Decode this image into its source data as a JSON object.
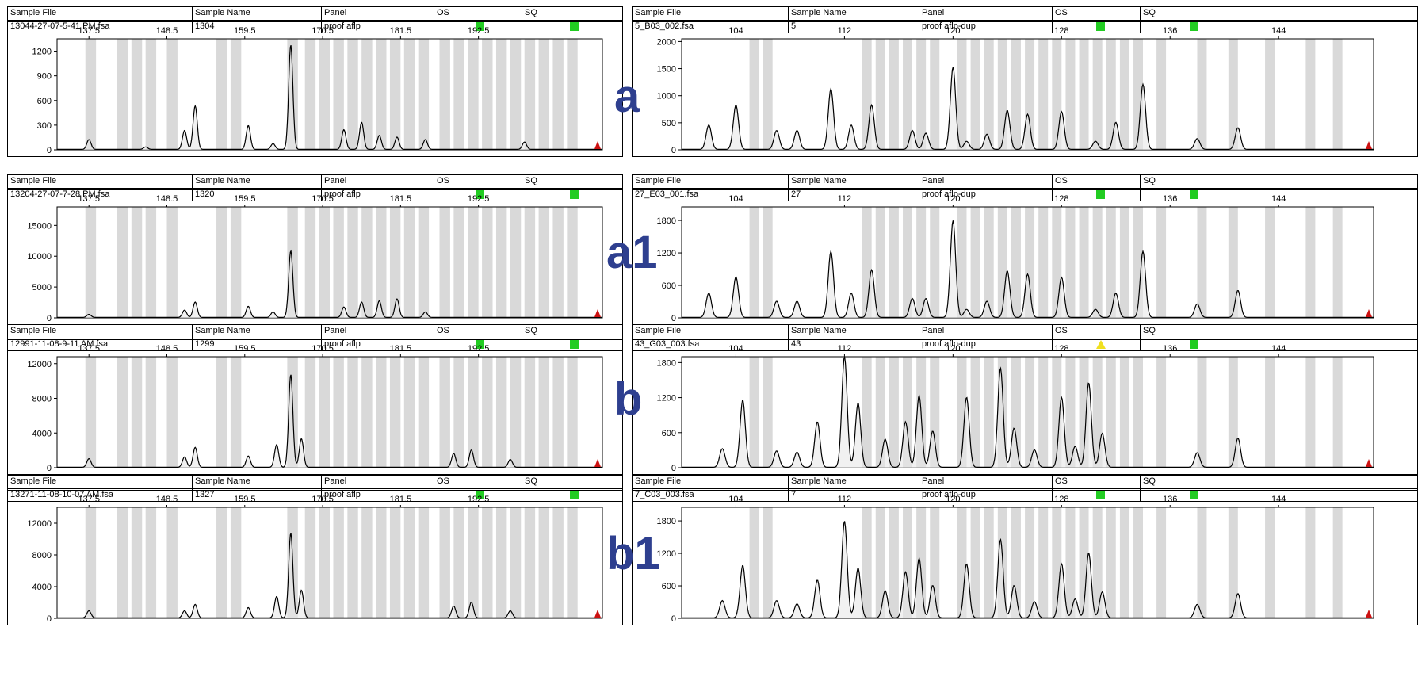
{
  "colors": {
    "bin": "#d9d9d9",
    "trace": "#000000",
    "ok": "#22cc22",
    "warn": "#f0e020",
    "marker": "#cc1111",
    "letter": "#2e3f8f"
  },
  "headers": {
    "sample_file": "Sample File",
    "sample_name": "Sample Name",
    "panel": "Panel",
    "os": "OS",
    "sq": "SQ"
  },
  "letters": [
    "a",
    "a1",
    "b",
    "b1"
  ],
  "left_axis": {
    "xticks": [
      "137.5",
      "148.5",
      "159.5",
      "170.5",
      "181.5",
      "192.5"
    ],
    "xrange": [
      133,
      210
    ]
  },
  "right_axis": {
    "xticks": [
      "104",
      "112",
      "120",
      "128",
      "136",
      "144"
    ],
    "xrange": [
      100,
      151
    ]
  },
  "left": [
    {
      "file": "13044-27-07-5-41 PM.fsa",
      "name": "1304",
      "panel": "proof aflp",
      "os": "ok",
      "sq": "ok",
      "yticks": [
        "0",
        "300",
        "600",
        "900",
        "1200"
      ],
      "ymax": 1350
    },
    {
      "file": "13204-27-07-7-28 PM.fsa",
      "name": "1320",
      "panel": "proof aflp",
      "os": "ok",
      "sq": "ok",
      "yticks": [
        "0",
        "5000",
        "10000",
        "15000"
      ],
      "ymax": 18000
    },
    {
      "file": "12991-11-08-9-11 AM.fsa",
      "name": "1299",
      "panel": "proof aflp",
      "os": "ok",
      "sq": "ok",
      "yticks": [
        "0",
        "4000",
        "8000",
        "12000"
      ],
      "ymax": 12800
    },
    {
      "file": "13271-11-08-10-07 AM.fsa",
      "name": "1327",
      "panel": "proof aflp",
      "os": "ok",
      "sq": "ok",
      "yticks": [
        "0",
        "4000",
        "8000",
        "12000"
      ],
      "ymax": 14000
    }
  ],
  "right": [
    {
      "file": "5_B03_002.fsa",
      "name": "5",
      "panel": "proof aflp-dup",
      "os": "ok",
      "sq": "ok",
      "yticks": [
        "0",
        "500",
        "1000",
        "1500",
        "2000"
      ],
      "ymax": 2050
    },
    {
      "file": "27_E03_001.fsa",
      "name": "27",
      "panel": "proof aflp-dup",
      "os": "ok",
      "sq": "ok",
      "yticks": [
        "0",
        "600",
        "1200",
        "1800"
      ],
      "ymax": 2050
    },
    {
      "file": "43_G03_003.fsa",
      "name": "43",
      "panel": "proof aflp-dup",
      "os": "warn",
      "sq": "ok",
      "yticks": [
        "0",
        "600",
        "1200",
        "1800"
      ],
      "ymax": 1900
    },
    {
      "file": "7_C03_003.fsa",
      "name": "7",
      "panel": "proof aflp-dup",
      "os": "ok",
      "sq": "ok",
      "yticks": [
        "0",
        "600",
        "1200",
        "1800"
      ],
      "ymax": 2050
    }
  ],
  "chart_data": [
    {
      "type": "line",
      "title": "13044-27-07-5-41 PM.fsa",
      "x_ticks": [
        137.5,
        148.5,
        159.5,
        170.5,
        181.5,
        192.5
      ],
      "ylim": [
        0,
        1350
      ],
      "peaks": [
        [
          137.5,
          120
        ],
        [
          145.5,
          30
        ],
        [
          151,
          230
        ],
        [
          152.5,
          530
        ],
        [
          160,
          290
        ],
        [
          163.5,
          70
        ],
        [
          166,
          1270
        ],
        [
          173.5,
          240
        ],
        [
          176,
          330
        ],
        [
          178.5,
          170
        ],
        [
          181,
          150
        ],
        [
          185,
          120
        ],
        [
          199,
          90
        ]
      ]
    },
    {
      "type": "line",
      "title": "13204-27-07-7-28 PM.fsa",
      "x_ticks": [
        137.5,
        148.5,
        159.5,
        170.5,
        181.5,
        192.5
      ],
      "ylim": [
        0,
        18000
      ],
      "peaks": [
        [
          137.5,
          500
        ],
        [
          151,
          1200
        ],
        [
          152.5,
          2500
        ],
        [
          160,
          1800
        ],
        [
          163.5,
          900
        ],
        [
          166,
          10800
        ],
        [
          173.5,
          1700
        ],
        [
          176,
          2500
        ],
        [
          178.5,
          2700
        ],
        [
          181,
          3000
        ],
        [
          185,
          900
        ]
      ]
    },
    {
      "type": "line",
      "title": "12991-11-08-9-11 AM.fsa",
      "x_ticks": [
        137.5,
        148.5,
        159.5,
        170.5,
        181.5,
        192.5
      ],
      "ylim": [
        0,
        12800
      ],
      "peaks": [
        [
          137.5,
          1000
        ],
        [
          151,
          1200
        ],
        [
          152.5,
          2300
        ],
        [
          160,
          1300
        ],
        [
          164,
          2600
        ],
        [
          166,
          10700
        ],
        [
          167.5,
          3300
        ],
        [
          189,
          1600
        ],
        [
          191.5,
          2000
        ],
        [
          197,
          900
        ]
      ]
    },
    {
      "type": "line",
      "title": "13271-11-08-10-07 AM.fsa",
      "x_ticks": [
        137.5,
        148.5,
        159.5,
        170.5,
        181.5,
        192.5
      ],
      "ylim": [
        0,
        14000
      ],
      "peaks": [
        [
          137.5,
          900
        ],
        [
          151,
          900
        ],
        [
          152.5,
          1700
        ],
        [
          160,
          1300
        ],
        [
          164,
          2700
        ],
        [
          166,
          10700
        ],
        [
          167.5,
          3500
        ],
        [
          189,
          1500
        ],
        [
          191.5,
          2000
        ],
        [
          197,
          900
        ]
      ]
    },
    {
      "type": "line",
      "title": "5_B03_002.fsa",
      "x_ticks": [
        104,
        112,
        120,
        128,
        136,
        144
      ],
      "ylim": [
        0,
        2050
      ],
      "peaks": [
        [
          102,
          450
        ],
        [
          104,
          820
        ],
        [
          107,
          350
        ],
        [
          108.5,
          350
        ],
        [
          111,
          1120
        ],
        [
          112.5,
          450
        ],
        [
          114,
          820
        ],
        [
          117,
          350
        ],
        [
          118,
          300
        ],
        [
          120,
          1520
        ],
        [
          121,
          150
        ],
        [
          122.5,
          280
        ],
        [
          124,
          720
        ],
        [
          125.5,
          650
        ],
        [
          128,
          700
        ],
        [
          130.5,
          150
        ],
        [
          132,
          500
        ],
        [
          134,
          1200
        ],
        [
          138,
          200
        ],
        [
          141,
          400
        ]
      ]
    },
    {
      "type": "line",
      "title": "27_E03_001.fsa",
      "x_ticks": [
        104,
        112,
        120,
        128,
        136,
        144
      ],
      "ylim": [
        0,
        2050
      ],
      "peaks": [
        [
          102,
          450
        ],
        [
          104,
          750
        ],
        [
          107,
          300
        ],
        [
          108.5,
          300
        ],
        [
          111,
          1220
        ],
        [
          112.5,
          450
        ],
        [
          114,
          880
        ],
        [
          117,
          350
        ],
        [
          118,
          350
        ],
        [
          120,
          1790
        ],
        [
          121,
          150
        ],
        [
          122.5,
          300
        ],
        [
          124,
          860
        ],
        [
          125.5,
          800
        ],
        [
          128,
          740
        ],
        [
          130.5,
          150
        ],
        [
          132,
          450
        ],
        [
          134,
          1220
        ],
        [
          138,
          250
        ],
        [
          141,
          500
        ]
      ]
    },
    {
      "type": "line",
      "title": "43_G03_003.fsa",
      "x_ticks": [
        104,
        112,
        120,
        128,
        136,
        144
      ],
      "ylim": [
        0,
        1900
      ],
      "peaks": [
        [
          103,
          320
        ],
        [
          104.5,
          1150
        ],
        [
          107,
          280
        ],
        [
          108.5,
          260
        ],
        [
          110,
          780
        ],
        [
          112,
          1900
        ],
        [
          113,
          1100
        ],
        [
          115,
          480
        ],
        [
          116.5,
          780
        ],
        [
          117.5,
          1230
        ],
        [
          118.5,
          620
        ],
        [
          121,
          1200
        ],
        [
          123.5,
          1700
        ],
        [
          124.5,
          670
        ],
        [
          126,
          300
        ],
        [
          128,
          1200
        ],
        [
          129,
          360
        ],
        [
          130,
          1450
        ],
        [
          131,
          580
        ],
        [
          138,
          250
        ],
        [
          141,
          500
        ]
      ]
    },
    {
      "type": "line",
      "title": "7_C03_003.fsa",
      "x_ticks": [
        104,
        112,
        120,
        128,
        136,
        144
      ],
      "ylim": [
        0,
        2050
      ],
      "peaks": [
        [
          103,
          320
        ],
        [
          104.5,
          970
        ],
        [
          107,
          320
        ],
        [
          108.5,
          260
        ],
        [
          110,
          700
        ],
        [
          112,
          1790
        ],
        [
          113,
          920
        ],
        [
          115,
          500
        ],
        [
          116.5,
          850
        ],
        [
          117.5,
          1100
        ],
        [
          118.5,
          600
        ],
        [
          121,
          1000
        ],
        [
          123.5,
          1450
        ],
        [
          124.5,
          600
        ],
        [
          126,
          300
        ],
        [
          128,
          1000
        ],
        [
          129,
          350
        ],
        [
          130,
          1200
        ],
        [
          131,
          480
        ],
        [
          138,
          250
        ],
        [
          141,
          450
        ]
      ]
    }
  ]
}
